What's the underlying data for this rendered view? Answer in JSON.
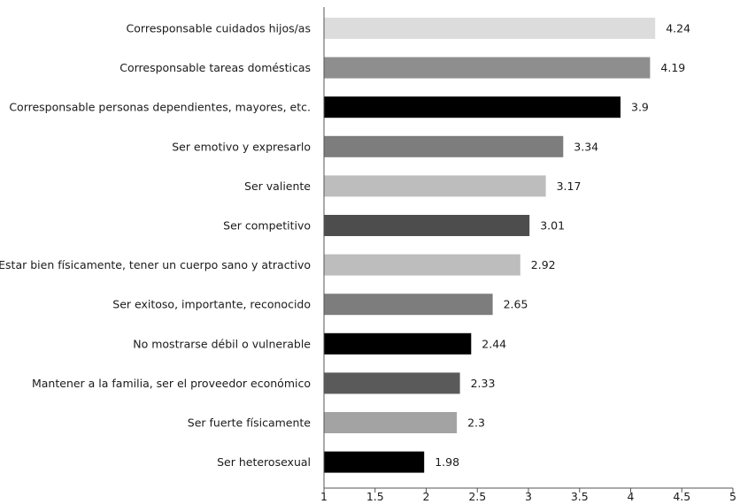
{
  "chart_data": {
    "type": "bar",
    "orientation": "horizontal",
    "title": "",
    "xlabel": "",
    "ylabel": "",
    "xlim": [
      1,
      5
    ],
    "xticks": [
      "1",
      "1.5",
      "2",
      "2.5",
      "3",
      "3.5",
      "4",
      "4.5",
      "5"
    ],
    "xtick_values": [
      1,
      1.5,
      2,
      2.5,
      3,
      3.5,
      4,
      4.5,
      5
    ],
    "grid": false,
    "legend": "none",
    "categories": [
      "Corresponsable cuidados hijos/as",
      "Corresponsable tareas domésticas",
      "Corresponsable personas dependientes, mayores, etc.",
      "Ser emotivo y expresarlo",
      "Ser valiente",
      "Ser competitivo",
      "Estar bien físicamente, tener un cuerpo sano y atractivo",
      "Ser exitoso,  importante, reconocido",
      "No mostrarse débil o vulnerable",
      "Mantener a la familia, ser el proveedor económico",
      "Ser fuerte físicamente",
      "Ser heterosexual"
    ],
    "values": [
      4.24,
      4.19,
      3.9,
      3.34,
      3.17,
      3.01,
      2.92,
      2.65,
      2.44,
      2.33,
      2.3,
      1.98
    ],
    "value_labels": [
      "4.24",
      "4.19",
      "3.9",
      "3.34",
      "3.17",
      "3.01",
      "2.92",
      "2.65",
      "2.44",
      "2.33",
      "2.3",
      "1.98"
    ],
    "colors": [
      "#dcdcdc",
      "#8e8e8e",
      "#000000",
      "#7d7d7d",
      "#bdbdbd",
      "#4d4d4d",
      "#bdbdbd",
      "#7d7d7d",
      "#000000",
      "#5a5a5a",
      "#a3a3a3",
      "#000000"
    ]
  }
}
